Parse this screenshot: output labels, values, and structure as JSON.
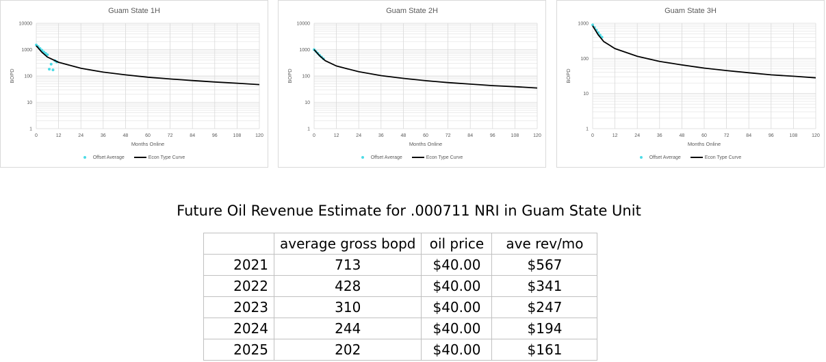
{
  "colors": {
    "curve": "#000000",
    "offset_points": "#4ddbe6",
    "grid": "#d9d9d9"
  },
  "chart_data": [
    {
      "type": "line",
      "title": "Guam State 1H",
      "xlabel": "Months Online",
      "ylabel": "BOPD",
      "y_scale": "log",
      "ylim": [
        1,
        10000
      ],
      "y_ticks": [
        "1",
        "10",
        "100",
        "1000",
        "10000"
      ],
      "xlim": [
        0,
        120
      ],
      "x_ticks": [
        "0",
        "12",
        "24",
        "36",
        "48",
        "60",
        "72",
        "84",
        "96",
        "108",
        "120"
      ],
      "grid": true,
      "legend_position": "bottom",
      "series": [
        {
          "name": "Offset Average",
          "kind": "scatter",
          "x": [
            0,
            1,
            2,
            3,
            4,
            5,
            6,
            7,
            8,
            9,
            10,
            11
          ],
          "y": [
            1500,
            1300,
            1100,
            950,
            820,
            720,
            640,
            180,
            280,
            170,
            380,
            340
          ]
        },
        {
          "name": "Econ Type Curve",
          "kind": "line",
          "x": [
            0,
            3,
            6,
            12,
            24,
            36,
            48,
            60,
            72,
            84,
            96,
            108,
            120
          ],
          "y": [
            1400,
            800,
            520,
            330,
            195,
            140,
            110,
            90,
            77,
            67,
            59,
            53,
            47
          ]
        }
      ]
    },
    {
      "type": "line",
      "title": "Guam State 2H",
      "xlabel": "Months Online",
      "ylabel": "BOPD",
      "y_scale": "log",
      "ylim": [
        1,
        10000
      ],
      "y_ticks": [
        "1",
        "10",
        "100",
        "1000",
        "10000"
      ],
      "xlim": [
        0,
        120
      ],
      "x_ticks": [
        "0",
        "12",
        "24",
        "36",
        "48",
        "60",
        "72",
        "84",
        "96",
        "108",
        "120"
      ],
      "grid": true,
      "legend_position": "bottom",
      "series": [
        {
          "name": "Offset Average",
          "kind": "scatter",
          "x": [
            0,
            1,
            2,
            3,
            4,
            5
          ],
          "y": [
            1000,
            850,
            720,
            610,
            520,
            450
          ]
        },
        {
          "name": "Econ Type Curve",
          "kind": "line",
          "x": [
            0,
            3,
            6,
            12,
            24,
            36,
            48,
            60,
            72,
            84,
            96,
            108,
            120
          ],
          "y": [
            1000,
            580,
            380,
            240,
            145,
            103,
            81,
            66,
            56,
            49,
            43,
            39,
            35
          ]
        }
      ]
    },
    {
      "type": "line",
      "title": "Guam State 3H",
      "xlabel": "Months Online",
      "ylabel": "BOPD",
      "y_scale": "log",
      "ylim": [
        1,
        1000
      ],
      "y_ticks": [
        "1",
        "10",
        "100",
        "1000"
      ],
      "xlim": [
        0,
        120
      ],
      "x_ticks": [
        "0",
        "12",
        "24",
        "36",
        "48",
        "60",
        "72",
        "84",
        "96",
        "108",
        "120"
      ],
      "grid": true,
      "legend_position": "bottom",
      "series": [
        {
          "name": "Offset Average",
          "kind": "scatter",
          "x": [
            0,
            1,
            2,
            3,
            4,
            5
          ],
          "y": [
            900,
            760,
            640,
            540,
            460,
            400
          ]
        },
        {
          "name": "Econ Type Curve",
          "kind": "line",
          "x": [
            0,
            3,
            6,
            12,
            24,
            36,
            48,
            60,
            72,
            84,
            96,
            108,
            120
          ],
          "y": [
            850,
            470,
            300,
            190,
            115,
            82,
            65,
            53,
            45,
            39,
            34,
            31,
            28
          ]
        }
      ]
    }
  ],
  "revenue": {
    "title": "Future Oil Revenue Estimate for .000711 NRI in Guam State Unit",
    "headers": [
      "",
      "average gross bopd",
      "oil price",
      "ave rev/mo"
    ],
    "rows": [
      [
        "2021",
        "713",
        "$40.00",
        "$567"
      ],
      [
        "2022",
        "428",
        "$40.00",
        "$341"
      ],
      [
        "2023",
        "310",
        "$40.00",
        "$247"
      ],
      [
        "2024",
        "244",
        "$40.00",
        "$194"
      ],
      [
        "2025",
        "202",
        "$40.00",
        "$161"
      ]
    ]
  }
}
